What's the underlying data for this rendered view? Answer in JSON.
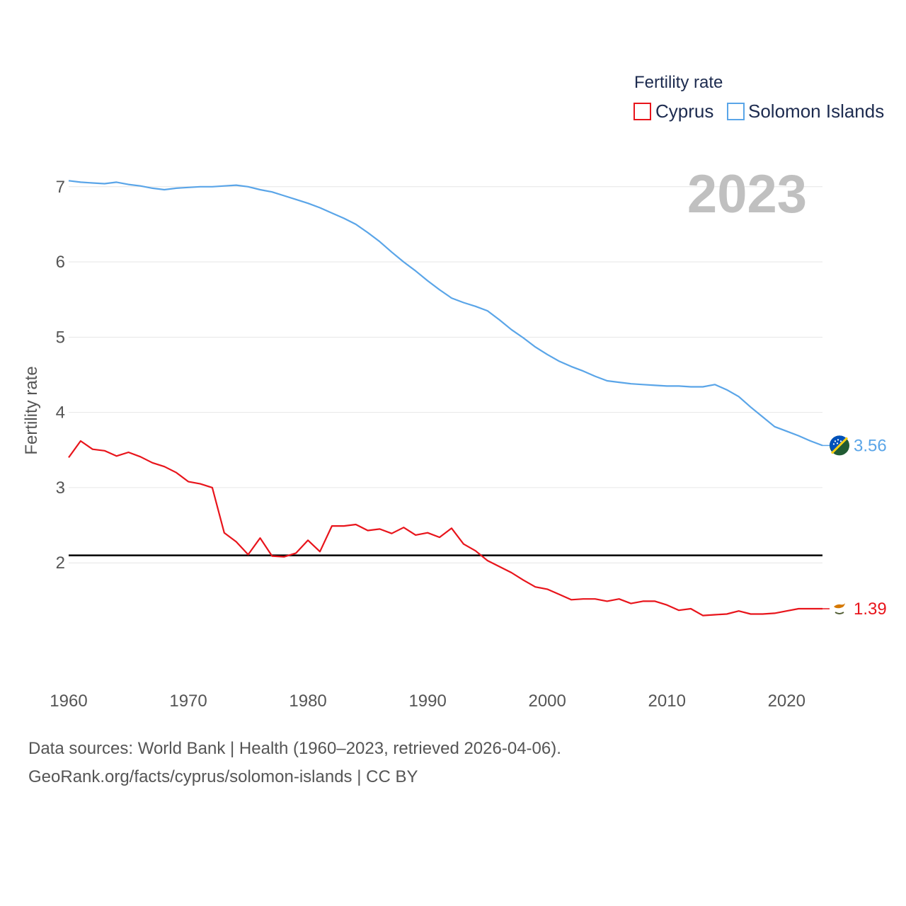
{
  "chart_data": {
    "type": "line",
    "year_overlay": "2023",
    "legend_title": "Fertility rate",
    "ylabel": "Fertility rate",
    "xlabel": "",
    "xlim": [
      1960,
      2023
    ],
    "ylim": [
      0.6,
      7.6
    ],
    "x_ticks": [
      "1960",
      "1970",
      "1980",
      "1990",
      "2000",
      "2010",
      "2020"
    ],
    "y_ticks": [
      "2",
      "3",
      "4",
      "5",
      "6",
      "7"
    ],
    "reference_line": 2.1,
    "x": [
      1960,
      1961,
      1962,
      1963,
      1964,
      1965,
      1966,
      1967,
      1968,
      1969,
      1970,
      1971,
      1972,
      1973,
      1974,
      1975,
      1976,
      1977,
      1978,
      1979,
      1980,
      1981,
      1982,
      1983,
      1984,
      1985,
      1986,
      1987,
      1988,
      1989,
      1990,
      1991,
      1992,
      1993,
      1994,
      1995,
      1996,
      1997,
      1998,
      1999,
      2000,
      2001,
      2002,
      2003,
      2004,
      2005,
      2006,
      2007,
      2008,
      2009,
      2010,
      2011,
      2012,
      2013,
      2014,
      2015,
      2016,
      2017,
      2018,
      2019,
      2020,
      2021,
      2022,
      2023
    ],
    "series": [
      {
        "name": "Cyprus",
        "color": "#e8141b",
        "end_label": "1.39",
        "flag": "cyprus-flag-icon",
        "values": [
          3.4,
          3.62,
          3.51,
          3.49,
          3.42,
          3.47,
          3.41,
          3.33,
          3.28,
          3.2,
          3.08,
          3.05,
          3.0,
          2.4,
          2.28,
          2.11,
          2.33,
          2.09,
          2.08,
          2.13,
          2.3,
          2.15,
          2.49,
          2.49,
          2.51,
          2.43,
          2.45,
          2.39,
          2.47,
          2.37,
          2.4,
          2.34,
          2.46,
          2.25,
          2.16,
          2.03,
          1.95,
          1.87,
          1.77,
          1.68,
          1.65,
          1.58,
          1.51,
          1.52,
          1.52,
          1.49,
          1.52,
          1.46,
          1.49,
          1.49,
          1.44,
          1.37,
          1.39,
          1.3,
          1.31,
          1.32,
          1.36,
          1.32,
          1.32,
          1.33,
          1.36,
          1.39,
          1.39,
          1.39
        ]
      },
      {
        "name": "Solomon Islands",
        "color": "#5aa5e8",
        "end_label": "3.56",
        "flag": "solomon-islands-flag-icon",
        "values": [
          7.08,
          7.06,
          7.05,
          7.04,
          7.06,
          7.03,
          7.01,
          6.98,
          6.96,
          6.98,
          6.99,
          7.0,
          7.0,
          7.01,
          7.02,
          7.0,
          6.96,
          6.93,
          6.88,
          6.83,
          6.78,
          6.72,
          6.65,
          6.58,
          6.5,
          6.39,
          6.27,
          6.13,
          6.0,
          5.88,
          5.75,
          5.63,
          5.52,
          5.46,
          5.41,
          5.35,
          5.23,
          5.1,
          4.99,
          4.87,
          4.77,
          4.68,
          4.61,
          4.55,
          4.48,
          4.42,
          4.4,
          4.38,
          4.37,
          4.36,
          4.35,
          4.35,
          4.34,
          4.34,
          4.37,
          4.3,
          4.21,
          4.07,
          3.94,
          3.81,
          3.75,
          3.69,
          3.62,
          3.56
        ]
      }
    ]
  },
  "footer": {
    "line1": "Data sources: World Bank | Health (1960–2023, retrieved 2026-04-06).",
    "line2": "GeoRank.org/facts/cyprus/solomon-islands | CC BY"
  }
}
